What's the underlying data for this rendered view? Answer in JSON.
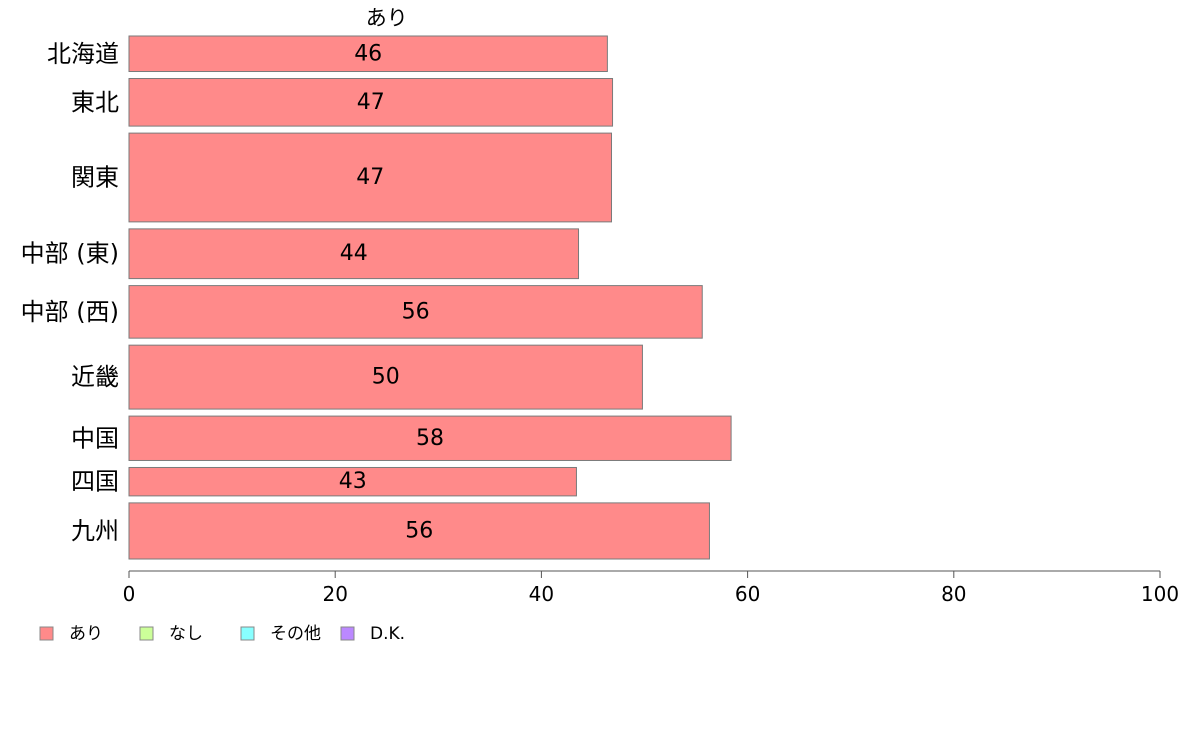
{
  "chart_data": {
    "type": "bar",
    "orientation": "horizontal",
    "series_header": "あり",
    "categories": [
      "北海道",
      "東北",
      "関東",
      "中部 (東)",
      "中部 (西)",
      "近畿",
      "中国",
      "四国",
      "九州"
    ],
    "series": [
      {
        "name": "あり",
        "color": "#ff8a8a",
        "values": [
          46.4,
          46.9,
          46.8,
          43.6,
          55.6,
          49.8,
          58.4,
          43.4,
          56.3
        ],
        "labels": [
          "46",
          "47",
          "47",
          "44",
          "56",
          "50",
          "58",
          "43",
          "56"
        ]
      }
    ],
    "relative_counts": [
      1.0,
      1.34,
      2.5,
      1.4,
      1.48,
      1.8,
      1.25,
      0.8,
      1.58
    ],
    "xlim": [
      0,
      100
    ],
    "xticks": [
      0,
      20,
      40,
      60,
      80,
      100
    ],
    "xtick_labels": [
      "0",
      "20",
      "40",
      "60",
      "80",
      "100"
    ],
    "grid": false,
    "legend": {
      "placement": "bottom-left",
      "entries": [
        {
          "label": "あり",
          "color": "#ff8a8a"
        },
        {
          "label": "なし",
          "color": "#ccff99"
        },
        {
          "label": "その他",
          "color": "#88ffff"
        },
        {
          "label": "D.K.",
          "color": "#bb88ff"
        }
      ]
    }
  }
}
